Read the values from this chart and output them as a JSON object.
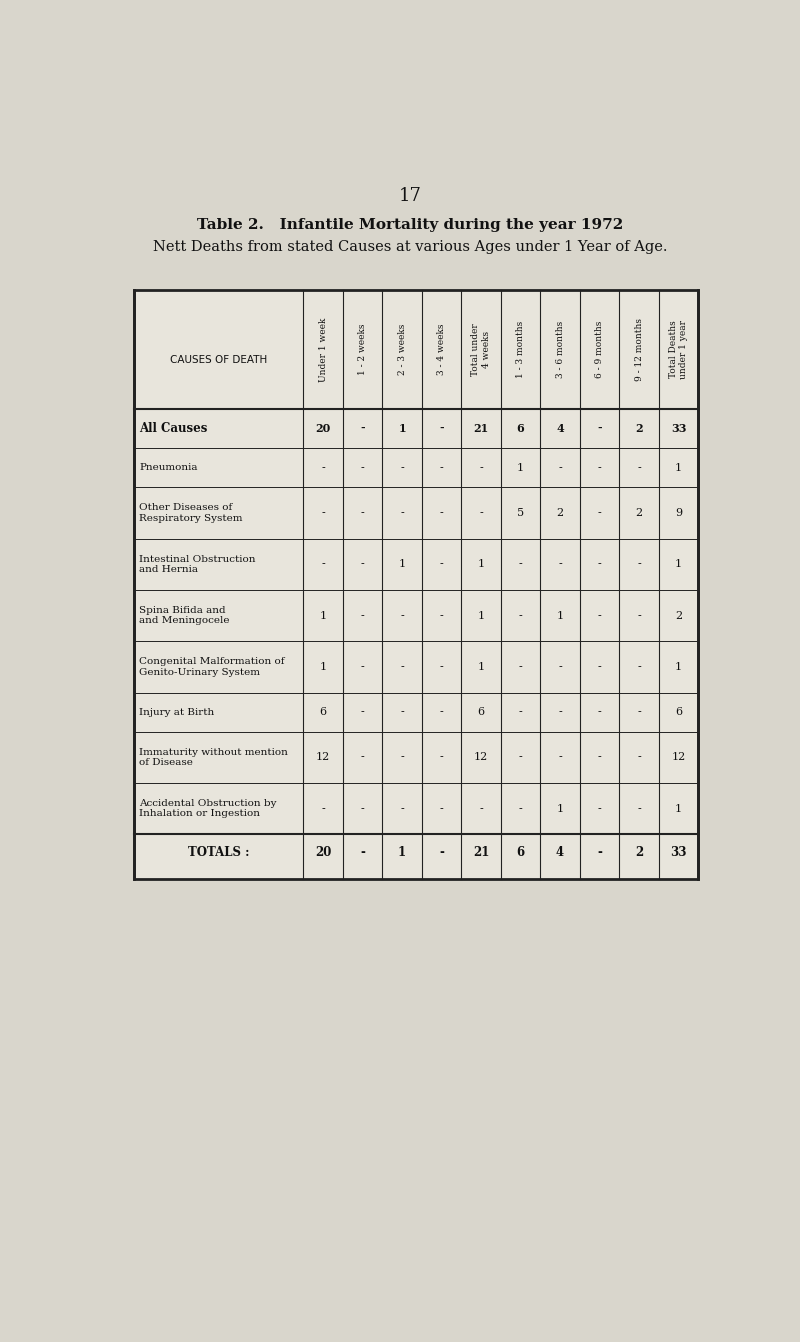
{
  "page_number": "17",
  "title_bold": "Table 2.   Infantile Mortality during the year 1972",
  "title_normal": "Nett Deaths from stated Causes at various Ages under 1 Year of Age.",
  "col_headers": [
    "Under 1 week",
    "1 - 2 weeks",
    "2 - 3 weeks",
    "3 - 4 weeks",
    "Total under\n4 weeks",
    "1 - 3 months",
    "3 - 6 months",
    "6 - 9 months",
    "9 - 12 months",
    "Total Deaths\nunder 1 year"
  ],
  "row_label_header": "CAUSES OF DEATH",
  "rows": [
    {
      "label": "All Causes",
      "values": [
        "20",
        "-",
        "1",
        "-",
        "21",
        "6",
        "4",
        "-",
        "2",
        "33"
      ],
      "bold": true
    },
    {
      "label": "Pneumonia",
      "values": [
        "-",
        "-",
        "-",
        "-",
        "-",
        "1",
        "-",
        "-",
        "-",
        "1"
      ],
      "bold": false
    },
    {
      "label": "Other Diseases of\nRespiratory System",
      "values": [
        "-",
        "-",
        "-",
        "-",
        "-",
        "5",
        "2",
        "-",
        "2",
        "9"
      ],
      "bold": false
    },
    {
      "label": "Intestinal Obstruction\nand Hernia",
      "values": [
        "-",
        "-",
        "1",
        "-",
        "1",
        "-",
        "-",
        "-",
        "-",
        "1"
      ],
      "bold": false
    },
    {
      "label": "Spina Bifida and\nand Meningocele",
      "values": [
        "1",
        "-",
        "-",
        "-",
        "1",
        "-",
        "1",
        "-",
        "-",
        "2"
      ],
      "bold": false
    },
    {
      "label": "Congenital Malformation of\nGenito-Urinary System",
      "values": [
        "1",
        "-",
        "-",
        "-",
        "1",
        "-",
        "-",
        "-",
        "-",
        "1"
      ],
      "bold": false
    },
    {
      "label": "Injury at Birth",
      "values": [
        "6",
        "-",
        "-",
        "-",
        "6",
        "-",
        "-",
        "-",
        "-",
        "6"
      ],
      "bold": false
    },
    {
      "label": "Immaturity without mention\nof Disease",
      "values": [
        "12",
        "-",
        "-",
        "-",
        "12",
        "-",
        "-",
        "-",
        "-",
        "12"
      ],
      "bold": false
    },
    {
      "label": "Accidental Obstruction by\nInhalation or Ingestion",
      "values": [
        "-",
        "-",
        "-",
        "-",
        "-",
        "-",
        "1",
        "-",
        "-",
        "1"
      ],
      "bold": false
    }
  ],
  "totals_row": {
    "label": "TOTALS :",
    "values": [
      "20",
      "-",
      "1",
      "-",
      "21",
      "6",
      "4",
      "-",
      "2",
      "33"
    ]
  },
  "bg_color": "#d9d6cc",
  "table_bg": "#e8e5dc",
  "border_color": "#222222",
  "text_color": "#111111"
}
